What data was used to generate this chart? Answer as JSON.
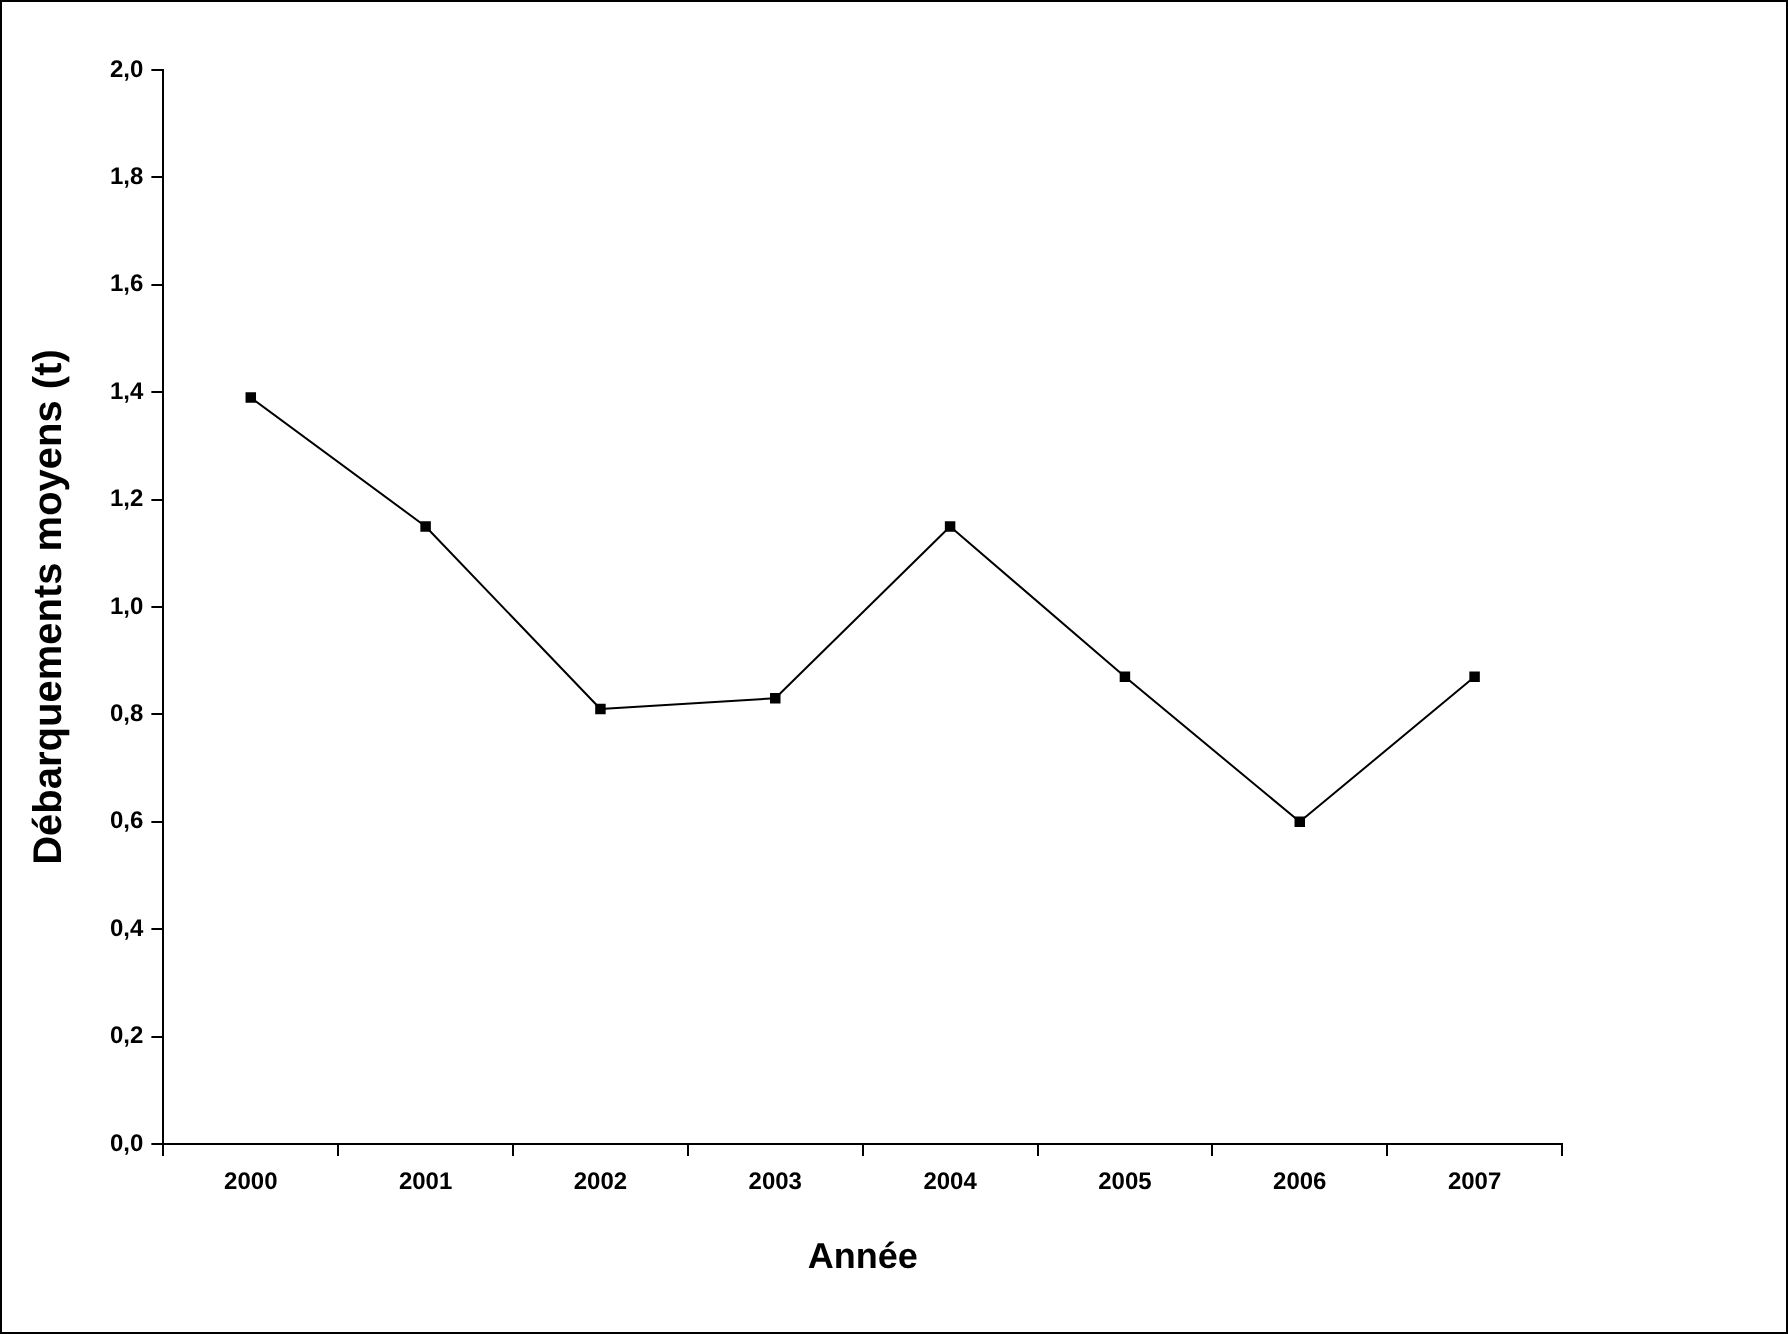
{
  "chart_data": {
    "type": "line",
    "xlabel": "Année",
    "ylabel": "Débarquements moyens (t)",
    "categories": [
      "2000",
      "2001",
      "2002",
      "2003",
      "2004",
      "2005",
      "2006",
      "2007"
    ],
    "series": [
      {
        "color": "#000000",
        "values": [
          1.39,
          1.15,
          0.81,
          0.83,
          1.15,
          0.87,
          0.6,
          0.87
        ]
      }
    ],
    "ylim": [
      0,
      2
    ],
    "yticks": [
      {
        "value": 0,
        "label": "0,0"
      },
      {
        "value": 0.2,
        "label": "0,2"
      },
      {
        "value": 0.4,
        "label": "0,4"
      },
      {
        "value": 0.6,
        "label": "0,6"
      },
      {
        "value": 0.8,
        "label": "0,8"
      },
      {
        "value": 1,
        "label": "1,0"
      },
      {
        "value": 1.2,
        "label": "1,2"
      },
      {
        "value": 1.4,
        "label": "1,4"
      },
      {
        "value": 1.6,
        "label": "1,6"
      },
      {
        "value": 1.8,
        "label": "1,8"
      },
      {
        "value": 2,
        "label": "2,0"
      }
    ],
    "grid": false,
    "legend": false,
    "marker": "square",
    "line_style": "solid"
  }
}
